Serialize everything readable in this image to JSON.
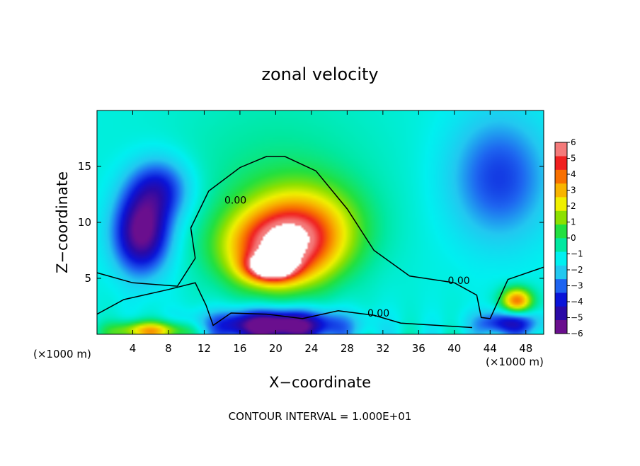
{
  "chart_data": {
    "type": "heatmap",
    "title": "zonal velocity",
    "xlabel": "X−coordinate",
    "ylabel": "Z−coordinate",
    "x_unit_label_left": "(×1000 m)",
    "x_unit_label_right": "(×1000 m)",
    "footer": "CONTOUR INTERVAL = 1.000E+01",
    "xlim": [
      0,
      50
    ],
    "ylim": [
      0,
      20
    ],
    "x_ticks": [
      4,
      8,
      12,
      16,
      20,
      24,
      28,
      32,
      36,
      40,
      44,
      48
    ],
    "x_tick_labels": [
      "4",
      "8",
      "12",
      "16",
      "20",
      "24",
      "28",
      "32",
      "36",
      "40",
      "44",
      "48"
    ],
    "y_ticks": [
      5,
      10,
      15
    ],
    "y_tick_labels": [
      "5",
      "10",
      "15"
    ],
    "colorbar": {
      "min": -6,
      "max": 6,
      "ticks": [
        6,
        5,
        4,
        3,
        2,
        1,
        0,
        -1,
        -2,
        -3,
        -4,
        -5,
        -6
      ],
      "tick_labels": [
        "6",
        "5",
        "4",
        "3",
        "2",
        "1",
        "0",
        "−1",
        "−2",
        "−3",
        "−4",
        "−5",
        "−6"
      ],
      "colors": [
        "#6a0f8e",
        "#2a0aa6",
        "#0a14d8",
        "#1e64f0",
        "#22c8f0",
        "#00f0f0",
        "#00e8a0",
        "#22e040",
        "#8ce000",
        "#f0f000",
        "#f8b400",
        "#f87000",
        "#f02020",
        "#f47a7a"
      ]
    },
    "contours": [
      {
        "label": "0.00",
        "label_x": 15.5,
        "label_y": 12.0
      },
      {
        "label": "0.00",
        "label_x": 40.5,
        "label_y": 4.8
      },
      {
        "label": "0.00",
        "label_x": 31.5,
        "label_y": 1.9
      }
    ],
    "features": [
      {
        "x": 20,
        "y": 7.5,
        "value": 5.5,
        "sx": 4.2,
        "sy": 2.4
      },
      {
        "x": 19.5,
        "y": 6.0,
        "value": 6.5,
        "sx": 1.8,
        "sy": 0.8
      },
      {
        "x": 23,
        "y": 9.5,
        "value": 4.0,
        "sx": 4.5,
        "sy": 2.8
      },
      {
        "x": 5,
        "y": 9,
        "value": -5.0,
        "sx": 2.2,
        "sy": 2.5
      },
      {
        "x": 7,
        "y": 13,
        "value": -3.0,
        "sx": 2.5,
        "sy": 2.0
      },
      {
        "x": 20,
        "y": 0.8,
        "value": -6.0,
        "sx": 5.0,
        "sy": 1.0
      },
      {
        "x": 47,
        "y": 3.0,
        "value": 5.5,
        "sx": 1.2,
        "sy": 0.8
      },
      {
        "x": 46,
        "y": 1.0,
        "value": -3.5,
        "sx": 2.5,
        "sy": 0.8
      },
      {
        "x": 6,
        "y": 0.3,
        "value": 4.5,
        "sx": 3.0,
        "sy": 0.6
      },
      {
        "x": 45,
        "y": 14,
        "value": -2.5,
        "sx": 4.0,
        "sy": 4.0
      }
    ]
  }
}
